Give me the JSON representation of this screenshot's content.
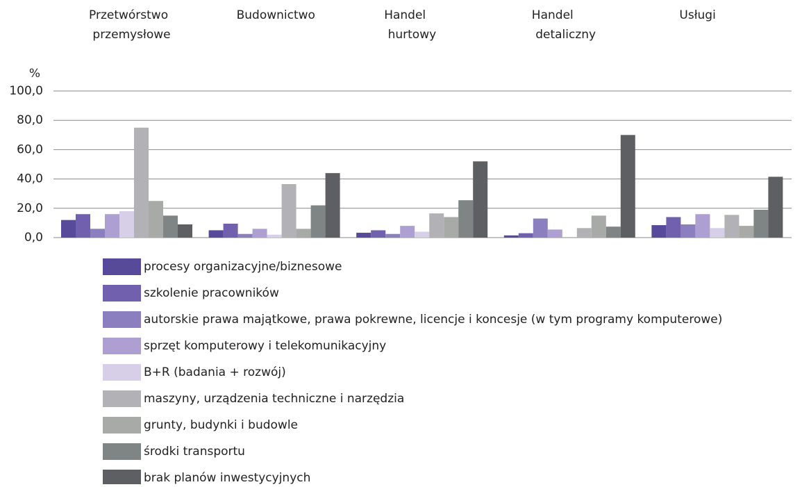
{
  "chart_data": {
    "type": "bar",
    "y_label": "%",
    "categories": [
      "Przetwórstwo przemysłowe",
      "Budownictwo",
      "Handel hurtowy",
      "Handel detaliczny",
      "Usługi"
    ],
    "series": [
      {
        "name": "procesy organizacyjne/biznesowe",
        "color": "#574a9a",
        "values": [
          12,
          5,
          3.3,
          1.5,
          8.5
        ]
      },
      {
        "name": "szkolenie pracowników",
        "color": "#7160ad",
        "values": [
          16,
          9.5,
          5,
          3,
          14
        ]
      },
      {
        "name": "autorskie prawa majątkowe, prawa pokrewne, licencje i koncesje (w tym programy komputerowe)",
        "color": "#8b7fbf",
        "values": [
          6,
          2.5,
          2.5,
          13,
          9
        ]
      },
      {
        "name": "sprzęt komputerowy i telekomunikacyjny",
        "color": "#ad9fd2",
        "values": [
          16,
          6,
          8,
          5.5,
          16
        ]
      },
      {
        "name": "B+R (badania + rozwój)",
        "color": "#d7cfe7",
        "values": [
          18,
          2,
          4,
          0,
          6.5
        ]
      },
      {
        "name": "maszyny, urządzenia techniczne i narzędzia",
        "color": "#b2b2b6",
        "values": [
          75,
          36.5,
          16.5,
          6.5,
          15.5
        ]
      },
      {
        "name": "grunty, budynki i budowle",
        "color": "#a8aaa8",
        "values": [
          25,
          6,
          14,
          15,
          8
        ]
      },
      {
        "name": "środki transportu",
        "color": "#7f8485",
        "values": [
          15,
          22,
          25.5,
          7.5,
          19
        ]
      },
      {
        "name": "brak planów inwestycyjnych",
        "color": "#5e5f62",
        "values": [
          9,
          44,
          52,
          70,
          41.5
        ]
      }
    ],
    "ylim": [
      0,
      100
    ],
    "yticks": [
      {
        "value": 0,
        "label": "0,0"
      },
      {
        "value": 20,
        "label": "20,0"
      },
      {
        "value": 40,
        "label": "40,0"
      },
      {
        "value": 60,
        "label": "60,0"
      },
      {
        "value": 80,
        "label": "80,0"
      },
      {
        "value": 100,
        "label": "100,0"
      }
    ],
    "grid": true
  }
}
